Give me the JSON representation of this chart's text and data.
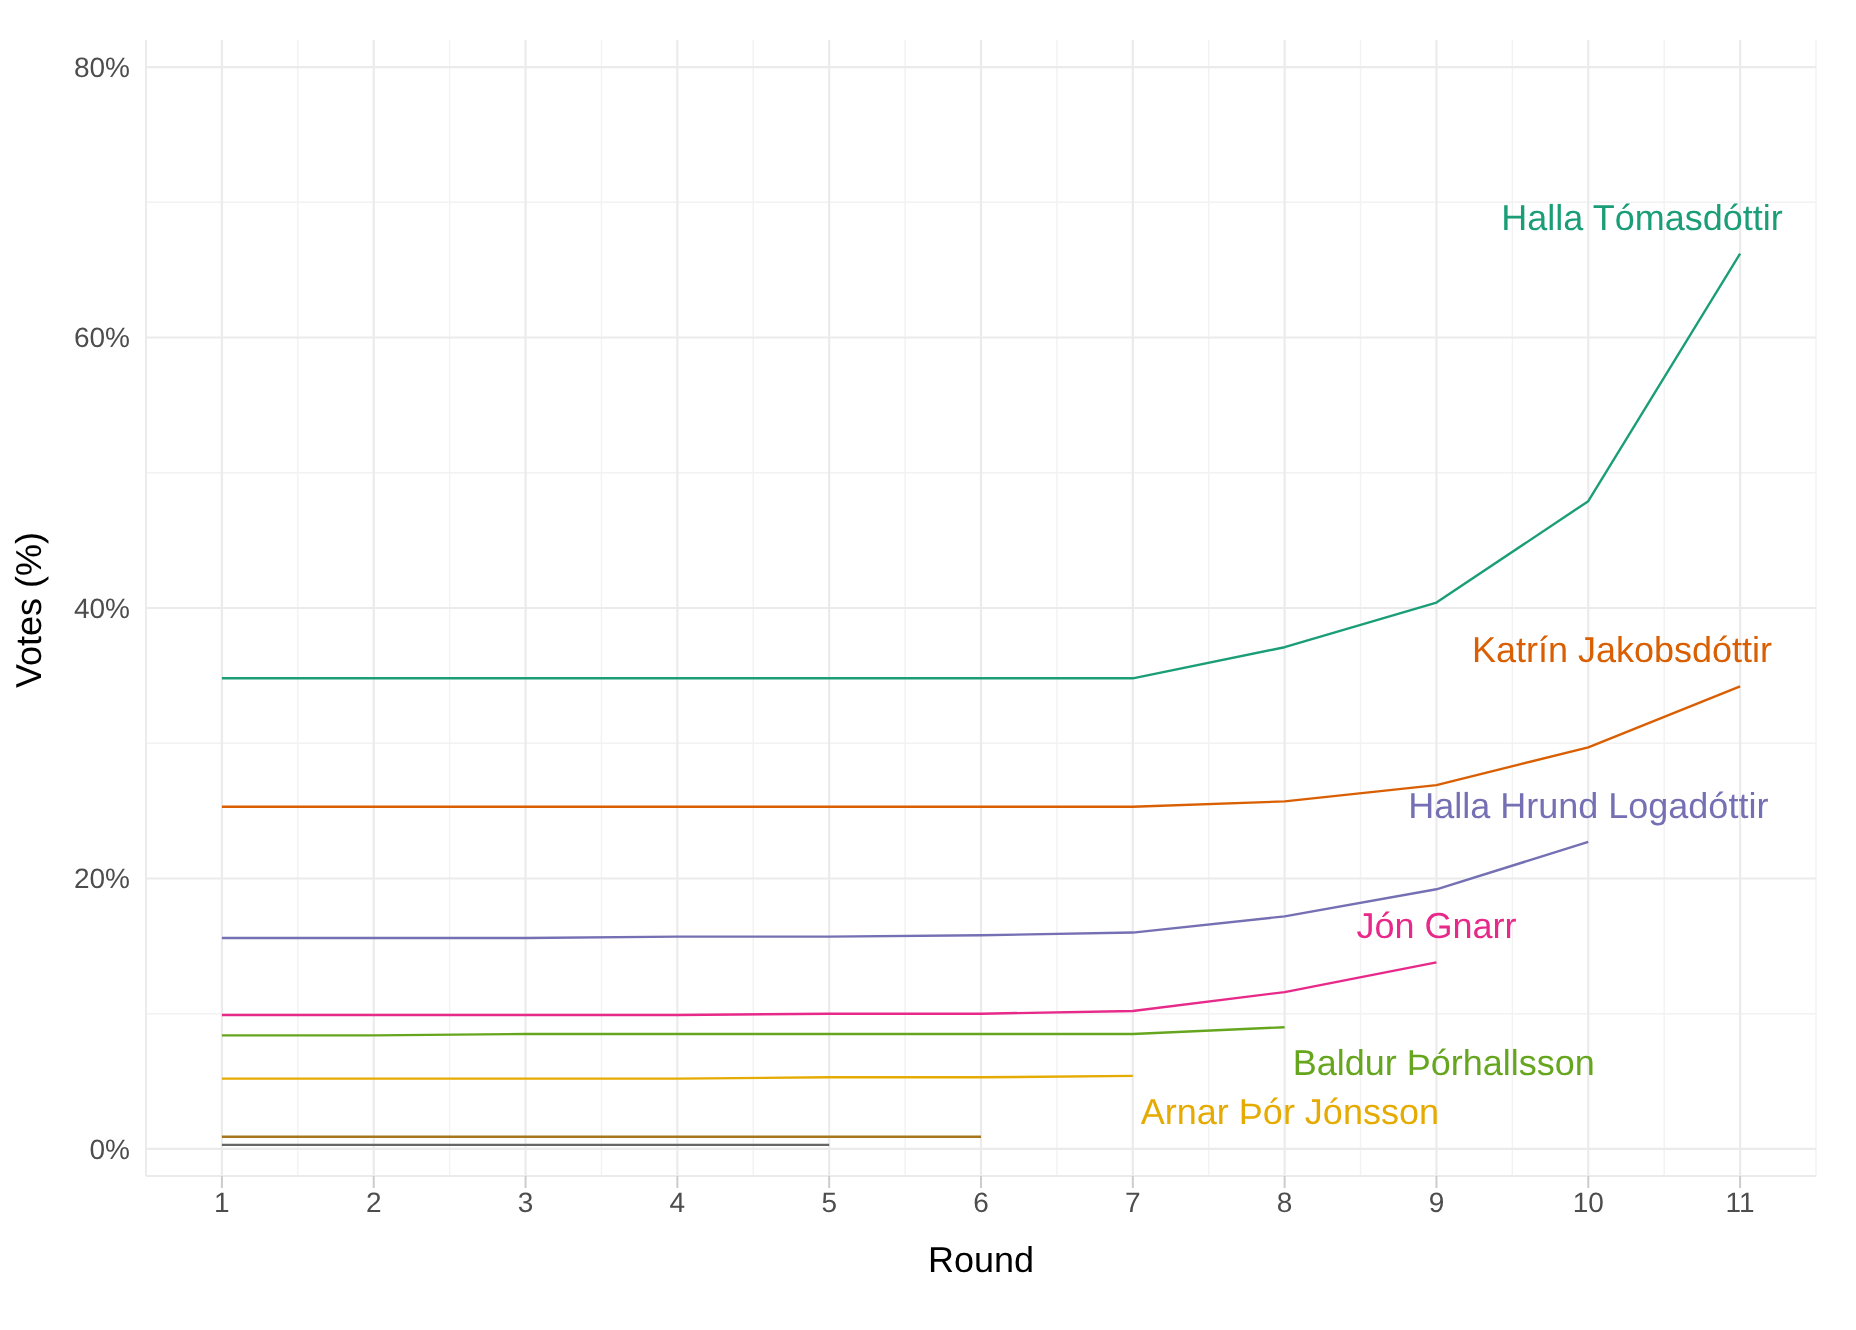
{
  "chart_data": {
    "type": "line",
    "xlabel": "Round",
    "ylabel": "Votes (%)",
    "x": [
      1,
      2,
      3,
      4,
      5,
      6,
      7,
      8,
      9,
      10,
      11
    ],
    "xlim": [
      0.5,
      11.5
    ],
    "xticks": [
      1,
      2,
      3,
      4,
      5,
      6,
      7,
      8,
      9,
      10,
      11
    ],
    "ylim": [
      -2,
      82
    ],
    "yticks": [
      {
        "value": 0,
        "label": "0%"
      },
      {
        "value": 20,
        "label": "20%"
      },
      {
        "value": 40,
        "label": "40%"
      },
      {
        "value": 60,
        "label": "60%"
      },
      {
        "value": 80,
        "label": "80%"
      }
    ],
    "grid": true,
    "legend": false,
    "marker": "none",
    "line_style": "solid",
    "series": [
      {
        "name": "Halla Tómasdóttir",
        "color": "#1b9e77",
        "values": [
          34.8,
          34.8,
          34.8,
          34.8,
          34.8,
          34.8,
          34.8,
          37.1,
          40.4,
          47.9,
          66.2
        ]
      },
      {
        "name": "Katrín Jakobsdóttir",
        "color": "#d95f02",
        "values": [
          25.3,
          25.3,
          25.3,
          25.3,
          25.3,
          25.3,
          25.3,
          25.7,
          26.9,
          29.7,
          34.2
        ]
      },
      {
        "name": "Halla Hrund Logadóttir",
        "color": "#7570b3",
        "values": [
          15.6,
          15.6,
          15.6,
          15.7,
          15.7,
          15.8,
          16.0,
          17.2,
          19.2,
          22.7,
          null
        ]
      },
      {
        "name": "Jón Gnarr",
        "color": "#e7298a",
        "values": [
          9.9,
          9.9,
          9.9,
          9.9,
          10.0,
          10.0,
          10.2,
          11.6,
          13.8,
          null,
          null
        ]
      },
      {
        "name": "Baldur Þórhallsson",
        "color": "#66a61e",
        "values": [
          8.4,
          8.4,
          8.5,
          8.5,
          8.5,
          8.5,
          8.5,
          9.0,
          null,
          null,
          null
        ]
      },
      {
        "name": "Arnar Þór Jónsson",
        "color": "#e6ab02",
        "values": [
          5.2,
          5.2,
          5.2,
          5.2,
          5.3,
          5.3,
          5.4,
          null,
          null,
          null,
          null
        ]
      },
      {
        "color": "#a6761d",
        "values": [
          0.9,
          0.9,
          0.9,
          0.9,
          0.9,
          0.9,
          null,
          null,
          null,
          null,
          null
        ]
      },
      {
        "color": "#666666",
        "values": [
          0.3,
          0.3,
          0.3,
          0.3,
          0.3,
          null,
          null,
          null,
          null,
          null,
          null
        ]
      }
    ]
  }
}
